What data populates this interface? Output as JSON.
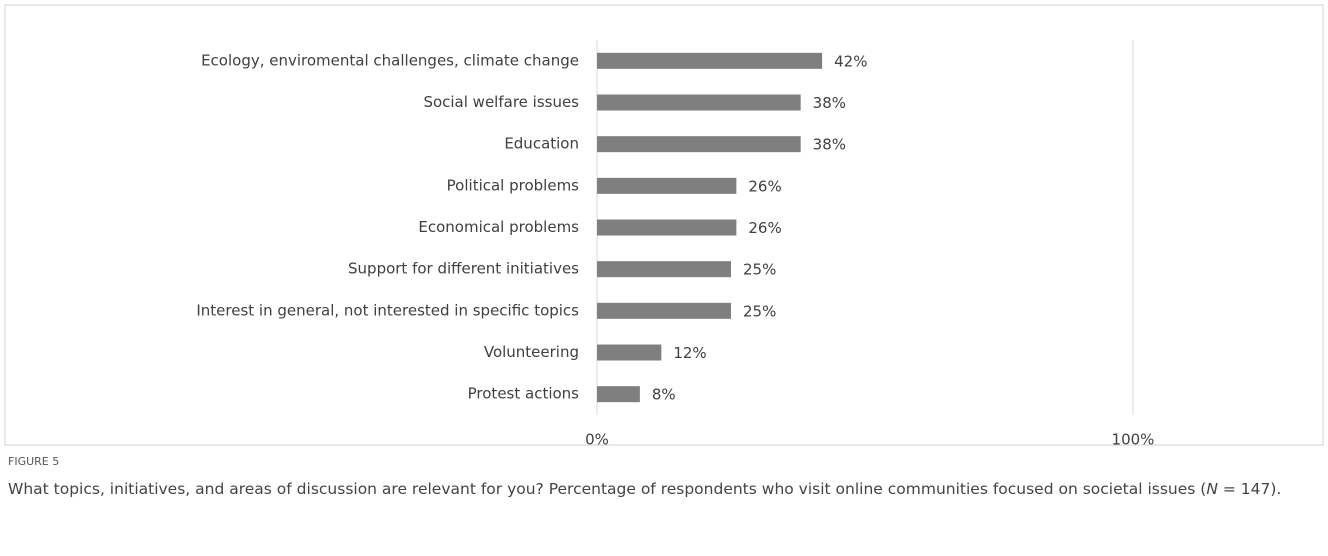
{
  "chart_data": {
    "type": "bar",
    "orientation": "horizontal",
    "categories": [
      "Ecology, enviromental challenges, climate change",
      "Social welfare issues",
      "Education",
      "Political problems",
      "Economical problems",
      "Support for different initiatives",
      "Interest in general, not interested in specific topics",
      "Volunteering",
      "Protest actions"
    ],
    "values": [
      42,
      38,
      38,
      26,
      26,
      25,
      25,
      12,
      8
    ],
    "value_labels": [
      "42%",
      "38%",
      "38%",
      "26%",
      "26%",
      "25%",
      "25%",
      "12%",
      "8%"
    ],
    "color": "#7f7f7f",
    "xlim": [
      0,
      100
    ],
    "xticks": [
      {
        "value": 0,
        "label": "0%"
      },
      {
        "value": 100,
        "label": "100%"
      }
    ],
    "grid": true
  },
  "figure": {
    "label": "FIGURE 5",
    "caption": [
      "What topics, initiatives, and areas of discussion are relevant for you? Percentage of respondents who visit online communities focused on societal issues (",
      "N",
      " = 147)."
    ]
  }
}
